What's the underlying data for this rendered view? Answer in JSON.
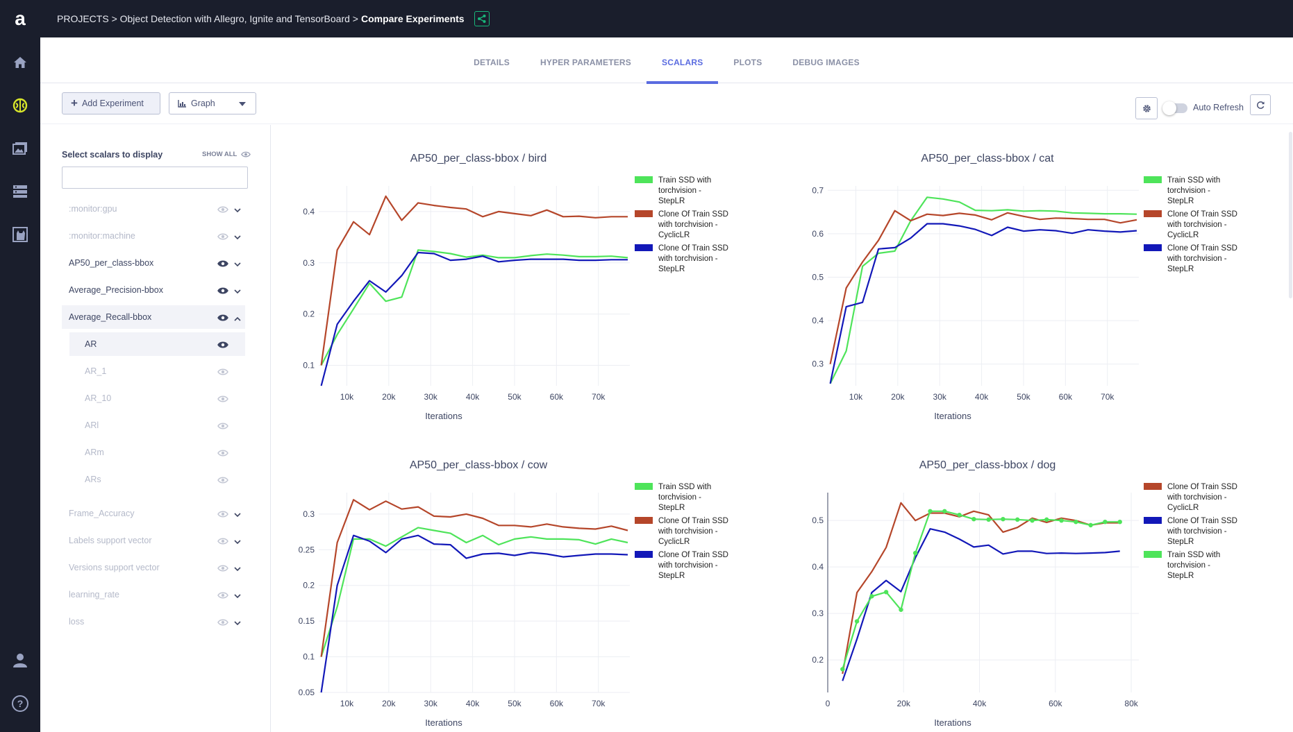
{
  "rail": {
    "logo": "a"
  },
  "breadcrumb": {
    "path": "PROJECTS > Object Detection with Allegro, Ignite and TensorBoard > ",
    "current": "Compare Experiments"
  },
  "tabs": [
    {
      "label": "DETAILS",
      "active": false
    },
    {
      "label": "HYPER PARAMETERS",
      "active": false
    },
    {
      "label": "SCALARS",
      "active": true
    },
    {
      "label": "PLOTS",
      "active": false
    },
    {
      "label": "DEBUG IMAGES",
      "active": false
    }
  ],
  "toolbar": {
    "add_experiment": "Add Experiment",
    "view_select": "Graph",
    "auto_refresh": "Auto Refresh",
    "auto_refresh_on": false
  },
  "sidebar": {
    "title": "Select scalars to display",
    "show_all": "SHOW ALL",
    "filter_value": "",
    "items": [
      {
        "label": ":monitor:gpu",
        "visible": false,
        "expanded": false
      },
      {
        "label": ":monitor:machine",
        "visible": false,
        "expanded": false
      },
      {
        "label": "AP50_per_class-bbox",
        "visible": true,
        "expanded": false
      },
      {
        "label": "Average_Precision-bbox",
        "visible": true,
        "expanded": false
      },
      {
        "label": "Average_Recall-bbox",
        "visible": true,
        "expanded": true
      },
      {
        "label": "AR",
        "visible": true,
        "sub": true
      },
      {
        "label": "AR_1",
        "visible": false,
        "sub": true
      },
      {
        "label": "AR_10",
        "visible": false,
        "sub": true
      },
      {
        "label": "ARl",
        "visible": false,
        "sub": true
      },
      {
        "label": "ARm",
        "visible": false,
        "sub": true
      },
      {
        "label": "ARs",
        "visible": false,
        "sub": true
      },
      {
        "label": "Frame_Accuracy",
        "visible": false,
        "expanded": false
      },
      {
        "label": "Labels support vector",
        "visible": false,
        "expanded": false
      },
      {
        "label": "Versions support vector",
        "visible": false,
        "expanded": false
      },
      {
        "label": "learning_rate",
        "visible": false,
        "expanded": false
      },
      {
        "label": "loss",
        "visible": false,
        "expanded": false
      }
    ]
  },
  "colors": {
    "train": "#4ee45a",
    "cyclic": "#b5462a",
    "step": "#1218b8"
  },
  "chart_data": [
    {
      "type": "line",
      "title": "AP50_per_class-bbox / bird",
      "xlabel": "Iterations",
      "xlim": [
        3300,
        77500
      ],
      "ylim": [
        0.06,
        0.45
      ],
      "xticks": [
        10000,
        20000,
        30000,
        40000,
        50000,
        60000,
        70000
      ],
      "xtick_labels": [
        "10k",
        "20k",
        "30k",
        "40k",
        "50k",
        "60k",
        "70k"
      ],
      "yticks": [
        0.1,
        0.2,
        0.3,
        0.4
      ],
      "ytick_labels": [
        "0.1",
        "0.2",
        "0.3",
        "0.4"
      ],
      "x": [
        3900,
        7700,
        11600,
        15400,
        19300,
        23100,
        27000,
        30800,
        34700,
        38500,
        42400,
        46200,
        50000,
        53900,
        57700,
        61600,
        65400,
        69300,
        73100,
        77000
      ],
      "series": [
        {
          "name": "Train SSD with torchvision - StepLR",
          "color": "#4ee45a",
          "values": [
            0.1,
            0.16,
            0.21,
            0.26,
            0.225,
            0.233,
            0.325,
            0.322,
            0.318,
            0.311,
            0.315,
            0.31,
            0.31,
            0.314,
            0.317,
            0.315,
            0.312,
            0.312,
            0.313,
            0.31
          ]
        },
        {
          "name": "Clone Of Train SSD with torchvision - CyclicLR",
          "color": "#b5462a",
          "values": [
            0.1,
            0.325,
            0.38,
            0.355,
            0.43,
            0.383,
            0.417,
            0.412,
            0.408,
            0.405,
            0.39,
            0.4,
            0.396,
            0.392,
            0.403,
            0.39,
            0.391,
            0.388,
            0.39,
            0.39
          ]
        },
        {
          "name": "Clone Of Train SSD with torchvision - StepLR",
          "color": "#1218b8",
          "values": [
            0.06,
            0.18,
            0.225,
            0.265,
            0.243,
            0.275,
            0.32,
            0.318,
            0.305,
            0.307,
            0.313,
            0.302,
            0.305,
            0.307,
            0.307,
            0.307,
            0.305,
            0.305,
            0.306,
            0.306
          ]
        }
      ]
    },
    {
      "type": "line",
      "title": "AP50_per_class-bbox / cat",
      "xlabel": "Iterations",
      "xlim": [
        3300,
        77500
      ],
      "ylim": [
        0.25,
        0.71
      ],
      "xticks": [
        10000,
        20000,
        30000,
        40000,
        50000,
        60000,
        70000
      ],
      "xtick_labels": [
        "10k",
        "20k",
        "30k",
        "40k",
        "50k",
        "60k",
        "70k"
      ],
      "yticks": [
        0.3,
        0.4,
        0.5,
        0.6,
        0.7
      ],
      "ytick_labels": [
        "0.3",
        "0.4",
        "0.5",
        "0.6",
        "0.7"
      ],
      "x": [
        3900,
        7700,
        11600,
        15400,
        19300,
        23100,
        27000,
        30800,
        34700,
        38500,
        42400,
        46200,
        50000,
        53900,
        57700,
        61600,
        65400,
        69300,
        73100,
        77000
      ],
      "series": [
        {
          "name": "Train SSD with torchvision - StepLR",
          "color": "#4ee45a",
          "values": [
            0.255,
            0.33,
            0.525,
            0.555,
            0.56,
            0.63,
            0.684,
            0.68,
            0.673,
            0.654,
            0.653,
            0.655,
            0.652,
            0.653,
            0.652,
            0.648,
            0.647,
            0.646,
            0.646,
            0.645
          ]
        },
        {
          "name": "Clone Of Train SSD with torchvision - CyclicLR",
          "color": "#b5462a",
          "values": [
            0.3,
            0.475,
            0.535,
            0.585,
            0.653,
            0.63,
            0.645,
            0.642,
            0.647,
            0.643,
            0.632,
            0.648,
            0.64,
            0.633,
            0.636,
            0.635,
            0.633,
            0.633,
            0.625,
            0.632
          ]
        },
        {
          "name": "Clone Of Train SSD with torchvision - StepLR",
          "color": "#1218b8",
          "values": [
            0.255,
            0.432,
            0.442,
            0.565,
            0.568,
            0.59,
            0.623,
            0.623,
            0.618,
            0.61,
            0.596,
            0.615,
            0.606,
            0.609,
            0.607,
            0.601,
            0.609,
            0.606,
            0.604,
            0.607
          ]
        }
      ]
    },
    {
      "type": "line",
      "title": "AP50_per_class-bbox / cow",
      "xlabel": "Iterations",
      "xlim": [
        3300,
        77500
      ],
      "ylim": [
        0.05,
        0.33
      ],
      "xticks": [
        10000,
        20000,
        30000,
        40000,
        50000,
        60000,
        70000
      ],
      "xtick_labels": [
        "10k",
        "20k",
        "30k",
        "40k",
        "50k",
        "60k",
        "70k"
      ],
      "yticks": [
        0.05,
        0.1,
        0.15,
        0.2,
        0.25,
        0.3
      ],
      "ytick_labels": [
        "0.05",
        "0.1",
        "0.15",
        "0.2",
        "0.25",
        "0.3"
      ],
      "x": [
        3900,
        7700,
        11600,
        15400,
        19300,
        23100,
        27000,
        30800,
        34700,
        38500,
        42400,
        46200,
        50000,
        53900,
        57700,
        61600,
        65400,
        69300,
        73100,
        77000
      ],
      "series": [
        {
          "name": "Train SSD with torchvision - StepLR",
          "color": "#4ee45a",
          "values": [
            0.1,
            0.17,
            0.265,
            0.265,
            0.255,
            0.268,
            0.281,
            0.277,
            0.273,
            0.26,
            0.27,
            0.257,
            0.265,
            0.268,
            0.265,
            0.265,
            0.264,
            0.258,
            0.265,
            0.26
          ]
        },
        {
          "name": "Clone Of Train SSD with torchvision - CyclicLR",
          "color": "#b5462a",
          "values": [
            0.1,
            0.26,
            0.32,
            0.306,
            0.318,
            0.307,
            0.31,
            0.297,
            0.296,
            0.3,
            0.294,
            0.284,
            0.284,
            0.282,
            0.286,
            0.282,
            0.28,
            0.279,
            0.283,
            0.277
          ]
        },
        {
          "name": "Clone Of Train SSD with torchvision - StepLR",
          "color": "#1218b8",
          "values": [
            0.05,
            0.2,
            0.27,
            0.262,
            0.246,
            0.265,
            0.27,
            0.258,
            0.257,
            0.238,
            0.244,
            0.245,
            0.242,
            0.246,
            0.244,
            0.24,
            0.242,
            0.244,
            0.244,
            0.243
          ]
        }
      ]
    },
    {
      "type": "line",
      "title": "AP50_per_class-bbox / dog",
      "xlabel": "Iterations",
      "xlim": [
        0,
        82000
      ],
      "ylim": [
        0.13,
        0.56
      ],
      "xticks": [
        0,
        20000,
        40000,
        60000,
        80000
      ],
      "xtick_labels": [
        "0",
        "20k",
        "40k",
        "60k",
        "80k"
      ],
      "yticks": [
        0.2,
        0.3,
        0.4,
        0.5
      ],
      "ytick_labels": [
        "0.2",
        "0.3",
        "0.4",
        "0.5"
      ],
      "x": [
        3900,
        7700,
        11600,
        15400,
        19300,
        23100,
        27000,
        30800,
        34700,
        38500,
        42400,
        46200,
        50000,
        53900,
        57700,
        61600,
        65400,
        69300,
        73100,
        77000
      ],
      "series": [
        {
          "name": "Clone Of Train SSD with torchvision - CyclicLR",
          "color": "#b5462a",
          "values": [
            0.17,
            0.345,
            0.39,
            0.442,
            0.538,
            0.5,
            0.516,
            0.516,
            0.508,
            0.52,
            0.512,
            0.475,
            0.485,
            0.505,
            0.496,
            0.505,
            0.5,
            0.49,
            0.495,
            0.495
          ]
        },
        {
          "name": "Clone Of Train SSD with torchvision - StepLR",
          "color": "#1218b8",
          "values": [
            0.155,
            0.245,
            0.345,
            0.371,
            0.347,
            0.42,
            0.482,
            0.475,
            0.46,
            0.443,
            0.447,
            0.428,
            0.434,
            0.434,
            0.429,
            0.43,
            0.429,
            0.43,
            0.431,
            0.434
          ]
        },
        {
          "name": "Train SSD with torchvision - StepLR",
          "color": "#4ee45a",
          "markers": true,
          "values": [
            0.18,
            0.283,
            0.337,
            0.346,
            0.308,
            0.43,
            0.52,
            0.52,
            0.512,
            0.503,
            0.502,
            0.503,
            0.502,
            0.5,
            0.502,
            0.5,
            0.497,
            0.49,
            0.497,
            0.497
          ]
        }
      ]
    }
  ]
}
